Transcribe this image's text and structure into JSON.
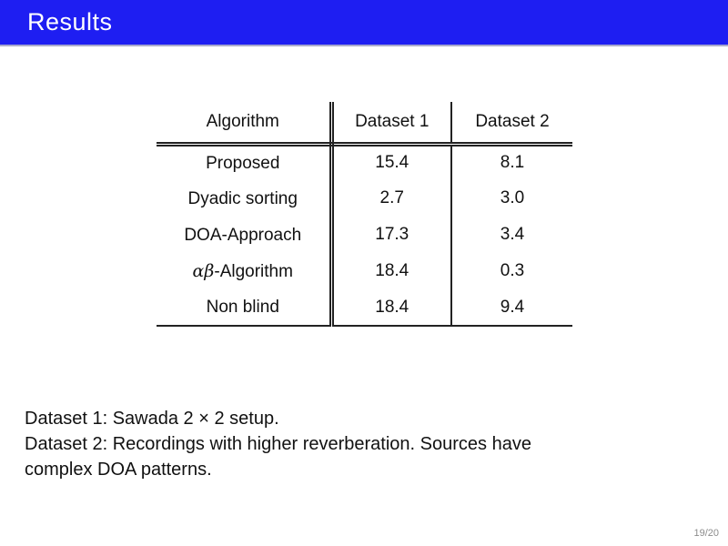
{
  "header": {
    "title": "Results",
    "bar_color": "#1e1ef2"
  },
  "table": {
    "columns": [
      "Algorithm",
      "Dataset 1",
      "Dataset 2"
    ],
    "rows": [
      {
        "greek": "",
        "algorithm": "Proposed",
        "dataset1": "15.4",
        "dataset2": "8.1"
      },
      {
        "greek": "",
        "algorithm": "Dyadic sorting",
        "dataset1": "2.7",
        "dataset2": "3.0"
      },
      {
        "greek": "",
        "algorithm": "DOA-Approach",
        "dataset1": "17.3",
        "dataset2": "3.4"
      },
      {
        "greek": "αβ",
        "algorithm": "-Algorithm",
        "dataset1": "18.4",
        "dataset2": "0.3"
      },
      {
        "greek": "",
        "algorithm": "Non blind",
        "dataset1": "18.4",
        "dataset2": "9.4"
      }
    ]
  },
  "notes": {
    "line1": "Dataset 1: Sawada 2 × 2 setup.",
    "line2": "Dataset 2: Recordings with higher reverberation. Sources have",
    "line3": "complex DOA patterns."
  },
  "footer": {
    "page_indicator": "19/20"
  }
}
